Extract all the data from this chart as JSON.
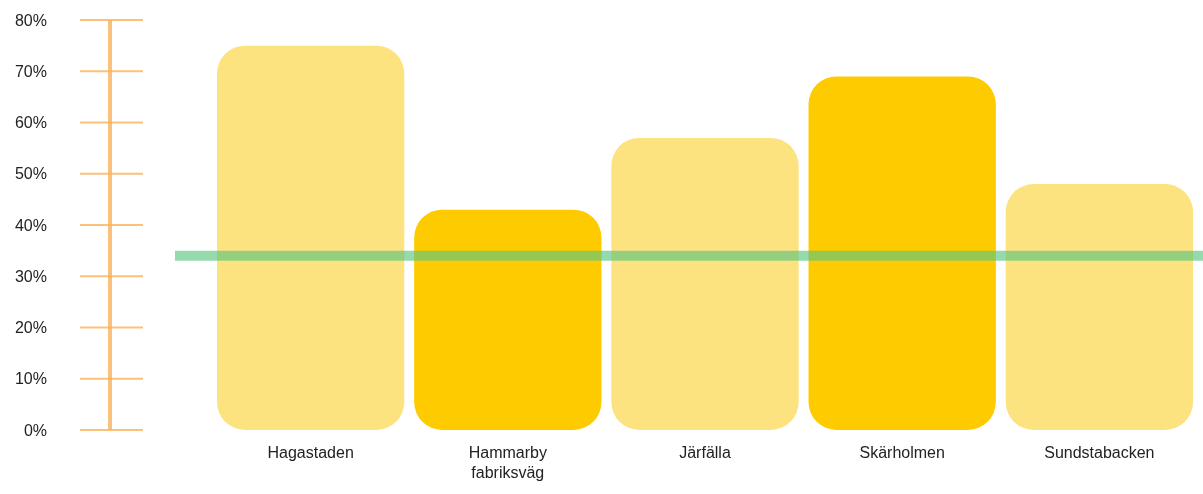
{
  "chart_data": {
    "type": "bar",
    "categories": [
      "Hagastaden",
      "Hammarby fabriksväg",
      "Järfälla",
      "Skärholmen",
      "Sundstabacken"
    ],
    "values": [
      75,
      43,
      57,
      69,
      48
    ],
    "colors": [
      "#fce380",
      "#fecb00",
      "#fce380",
      "#fecb00",
      "#fce380"
    ],
    "ylim": [
      0,
      80
    ],
    "yticks": [
      {
        "value": 0,
        "label": "0%"
      },
      {
        "value": 10,
        "label": "10%"
      },
      {
        "value": 20,
        "label": "20%"
      },
      {
        "value": 30,
        "label": "30%"
      },
      {
        "value": 40,
        "label": "40%"
      },
      {
        "value": 50,
        "label": "50%"
      },
      {
        "value": 60,
        "label": "60%"
      },
      {
        "value": 70,
        "label": "70%"
      },
      {
        "value": 80,
        "label": "80%"
      }
    ],
    "ref_lines": [
      {
        "axis": "y",
        "value": 34,
        "label": null,
        "color": "#5cc47f"
      }
    ],
    "grid": false
  }
}
